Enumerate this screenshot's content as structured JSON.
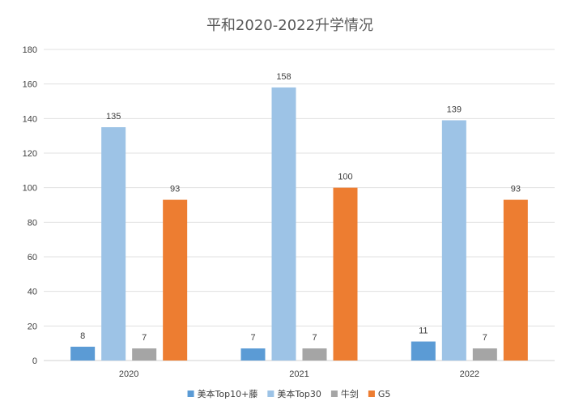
{
  "chart_data": {
    "type": "bar",
    "title": "平和2020-2022升学情况",
    "xlabel": "",
    "ylabel": "",
    "categories": [
      "2020",
      "2021",
      "2022"
    ],
    "ylim": [
      0,
      180
    ],
    "yticks": [
      0,
      20,
      40,
      60,
      80,
      100,
      120,
      140,
      160,
      180
    ],
    "grid": true,
    "legend_position": "bottom",
    "data_labels": true,
    "series": [
      {
        "name": "美本Top10+藤",
        "color": "#5B9BD5",
        "values": [
          8,
          7,
          11
        ]
      },
      {
        "name": "美本Top30",
        "color": "#9DC3E6",
        "values": [
          135,
          158,
          139
        ]
      },
      {
        "name": "牛剑",
        "color": "#A5A5A5",
        "values": [
          7,
          7,
          7
        ]
      },
      {
        "name": "G5",
        "color": "#ED7D31",
        "values": [
          93,
          100,
          93
        ]
      }
    ]
  }
}
